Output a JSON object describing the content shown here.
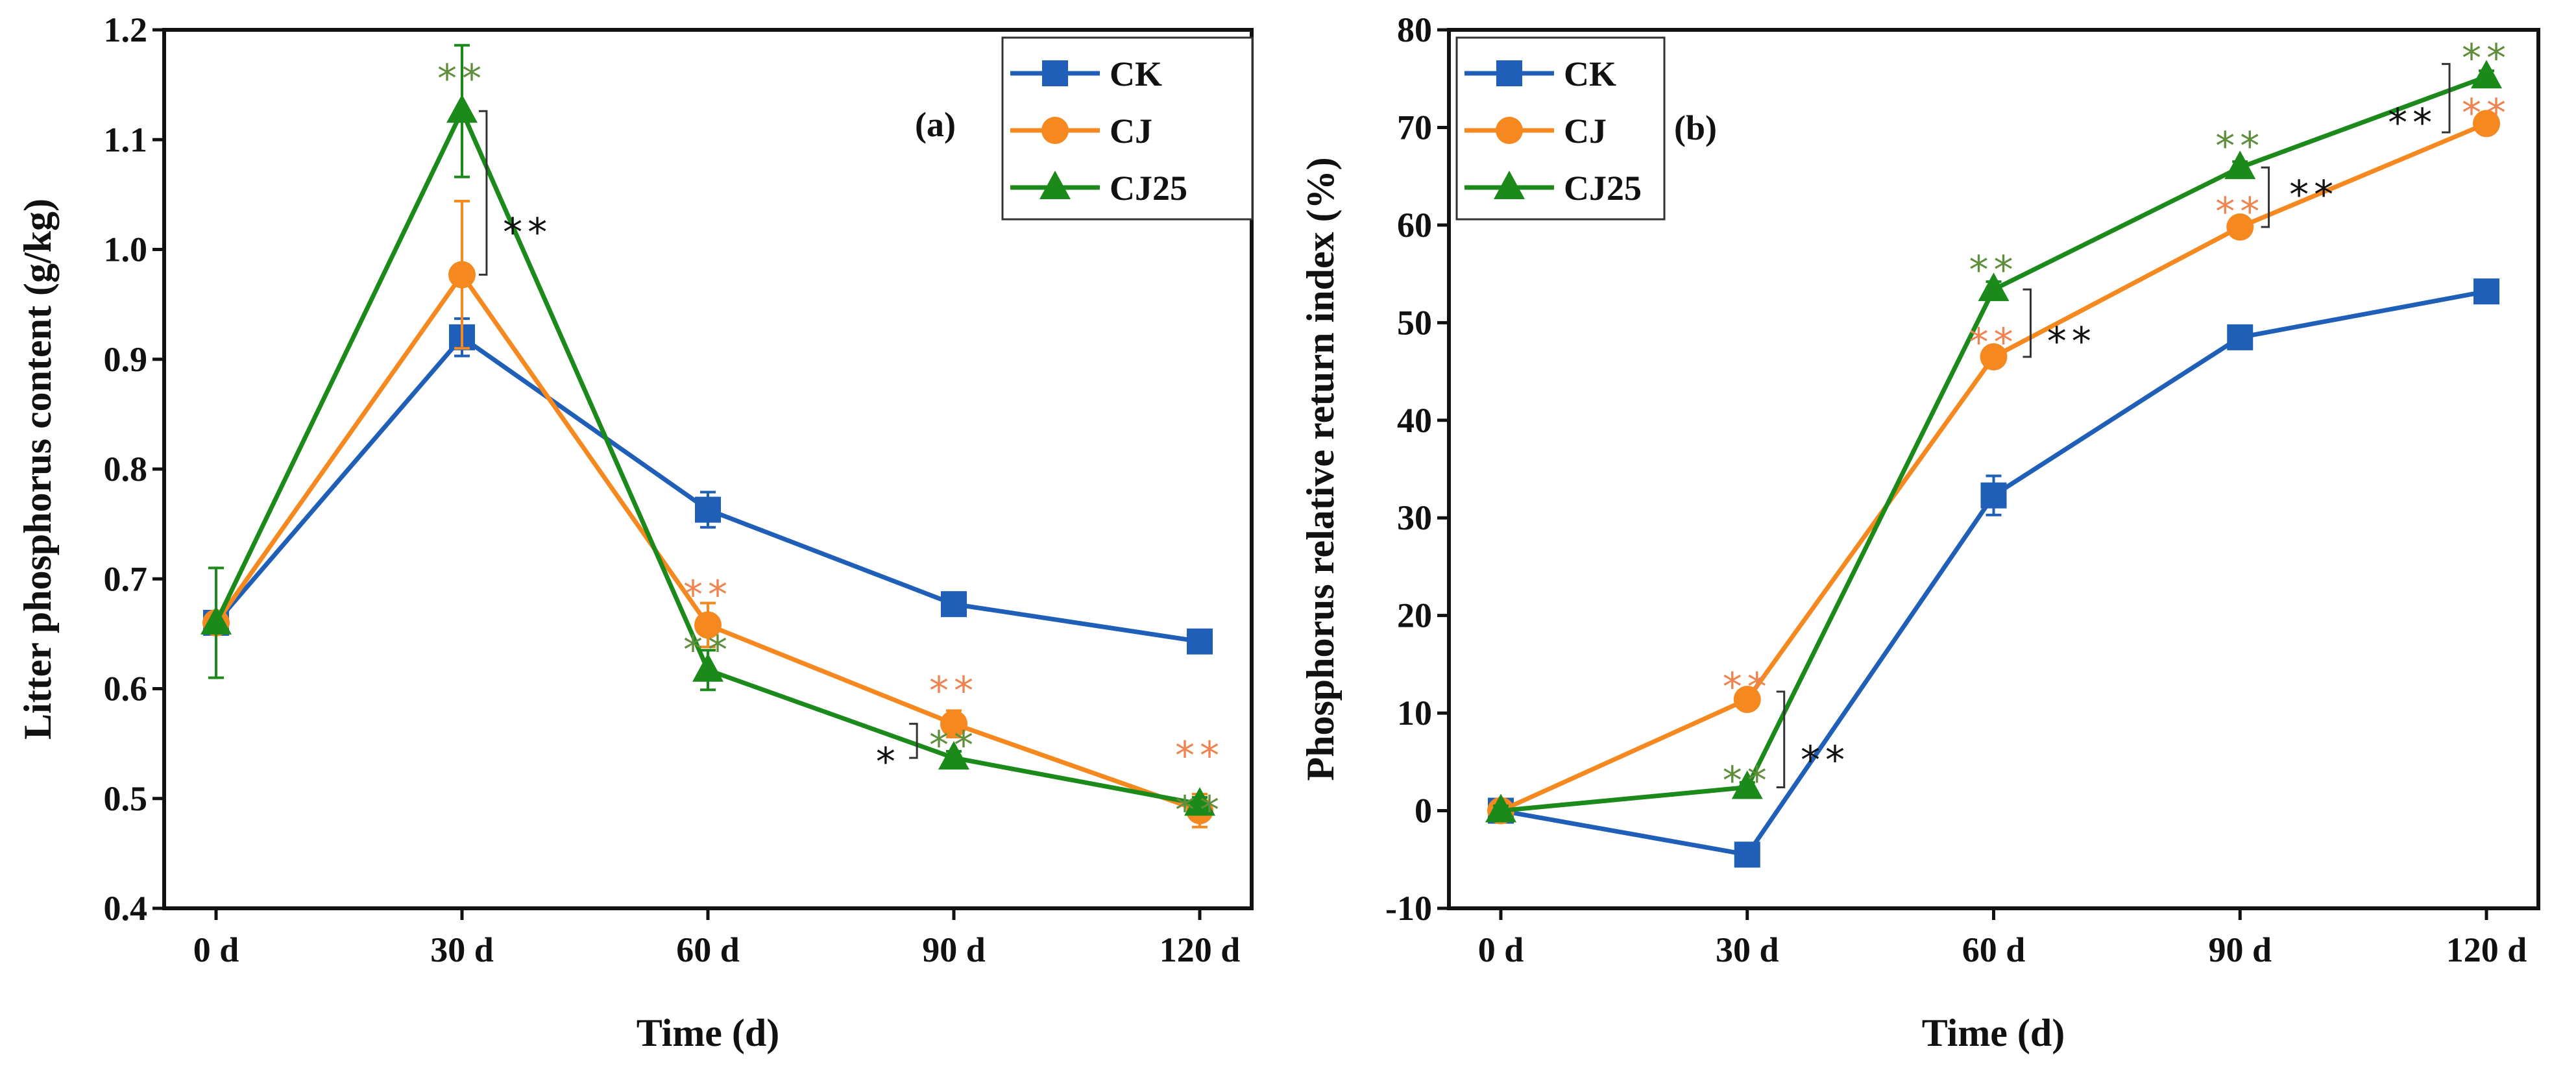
{
  "chart_data": [
    {
      "type": "line",
      "panel_label": "(a)",
      "xlabel": "Time (d)",
      "ylabel": "Litter phosphorus content  (g/kg)",
      "categories": [
        "0 d",
        "30 d",
        "60 d",
        "90 d",
        "120 d"
      ],
      "x": [
        0,
        30,
        60,
        90,
        120
      ],
      "ylim": [
        0.4,
        1.2
      ],
      "yticks": [
        0.4,
        0.5,
        0.6,
        0.7,
        0.8,
        0.9,
        1.0,
        1.1,
        1.2
      ],
      "ytick_labels": [
        "0.4",
        "0.5",
        "0.6",
        "0.7",
        "0.8",
        "0.9",
        "1.0",
        "1.1",
        "1.2"
      ],
      "legend_position": "top-right",
      "grid": false,
      "series": [
        {
          "name": "CK",
          "color": "#1f5fb8",
          "marker": "square",
          "values": [
            0.66,
            0.92,
            0.763,
            0.677,
            0.643
          ],
          "errors": [
            0.0,
            0.017,
            0.016,
            0.006,
            0.005
          ]
        },
        {
          "name": "CJ",
          "color": "#f5891f",
          "marker": "circle",
          "values": [
            0.66,
            0.977,
            0.658,
            0.568,
            0.489
          ],
          "errors": [
            0.0,
            0.067,
            0.02,
            0.012,
            0.015
          ]
        },
        {
          "name": "CJ25",
          "color": "#1b8a1b",
          "marker": "triangle",
          "values": [
            0.66,
            1.126,
            0.617,
            0.537,
            0.495
          ],
          "errors": [
            0.05,
            0.06,
            0.018,
            0.006,
            0.006
          ]
        }
      ],
      "annotations": [
        {
          "text": "**",
          "x": 30,
          "y": 1.16,
          "color": "#5f8f3c"
        },
        {
          "text": "**",
          "x": 38,
          "y": 1.02,
          "color": "#111111",
          "bracket": [
            33,
            0.977,
            1.126
          ]
        },
        {
          "text": "**",
          "x": 60,
          "y": 0.69,
          "color": "#ee8450"
        },
        {
          "text": "**",
          "x": 60,
          "y": 0.64,
          "color": "#5f8f3c"
        },
        {
          "text": "**",
          "x": 90,
          "y": 0.597,
          "color": "#ee8450"
        },
        {
          "text": "**",
          "x": 90,
          "y": 0.553,
          "color": "#5f8f3c"
        },
        {
          "text": "*",
          "x": 82,
          "y": 0.538,
          "color": "#111111",
          "bracket": [
            85.5,
            0.537,
            0.568
          ]
        },
        {
          "text": "**",
          "x": 120,
          "y": 0.518,
          "color": "#ee8450"
        },
        {
          "text": "**",
          "x": 120,
          "y": 0.494,
          "color": "#5f8f3c"
        }
      ]
    },
    {
      "type": "line",
      "panel_label": "(b)",
      "xlabel": "Time (d)",
      "ylabel": "Phosphorus relative return index (%)",
      "categories": [
        "0 d",
        "30 d",
        "60 d",
        "90 d",
        "120 d"
      ],
      "x": [
        0,
        30,
        60,
        90,
        120
      ],
      "ylim": [
        -10,
        80
      ],
      "yticks": [
        -10,
        0,
        10,
        20,
        30,
        40,
        50,
        60,
        70,
        80
      ],
      "ytick_labels": [
        "-10",
        "0",
        "10",
        "20",
        "30",
        "40",
        "50",
        "60",
        "70",
        "80"
      ],
      "legend_position": "top-left",
      "grid": false,
      "series": [
        {
          "name": "CK",
          "color": "#1f5fb8",
          "marker": "square",
          "values": [
            0,
            -4.5,
            32.3,
            48.5,
            53.2
          ],
          "errors": [
            0.5,
            0.6,
            2.0,
            0.6,
            0.5
          ]
        },
        {
          "name": "CJ",
          "color": "#f5891f",
          "marker": "circle",
          "values": [
            0,
            11.4,
            46.5,
            59.8,
            70.4
          ],
          "errors": [
            0.5,
            0.6,
            0.8,
            0.6,
            0.6
          ]
        },
        {
          "name": "CJ25",
          "color": "#1b8a1b",
          "marker": "triangle",
          "values": [
            0,
            2.4,
            53.4,
            65.9,
            75.2
          ],
          "errors": [
            0.5,
            0.5,
            0.8,
            0.6,
            0.6
          ]
        }
      ],
      "annotations": [
        {
          "text": "**",
          "x": 30,
          "y": 13.2,
          "color": "#ee8450"
        },
        {
          "text": "**",
          "x": 30,
          "y": 3.6,
          "color": "#5f8f3c"
        },
        {
          "text": "**",
          "x": 39.5,
          "y": 5.7,
          "color": "#111111",
          "bracket": [
            34.5,
            2.4,
            12.2
          ]
        },
        {
          "text": "**",
          "x": 60,
          "y": 55.9,
          "color": "#5f8f3c"
        },
        {
          "text": "**",
          "x": 60,
          "y": 48.5,
          "color": "#ee8450"
        },
        {
          "text": "**",
          "x": 69.5,
          "y": 48.6,
          "color": "#111111",
          "bracket": [
            64.5,
            46.5,
            53.4
          ]
        },
        {
          "text": "**",
          "x": 90,
          "y": 68.6,
          "color": "#5f8f3c"
        },
        {
          "text": "**",
          "x": 90,
          "y": 61.9,
          "color": "#ee8450"
        },
        {
          "text": "**",
          "x": 99,
          "y": 63.6,
          "color": "#111111",
          "bracket": [
            93.5,
            59.8,
            65.9
          ]
        },
        {
          "text": "**",
          "x": 120,
          "y": 77.6,
          "color": "#5f8f3c"
        },
        {
          "text": "**",
          "x": 120,
          "y": 72.0,
          "color": "#ee8450"
        },
        {
          "text": "**",
          "x": 111,
          "y": 71.0,
          "color": "#111111",
          "bracket": [
            115.5,
            69.5,
            76.5
          ]
        }
      ]
    }
  ]
}
